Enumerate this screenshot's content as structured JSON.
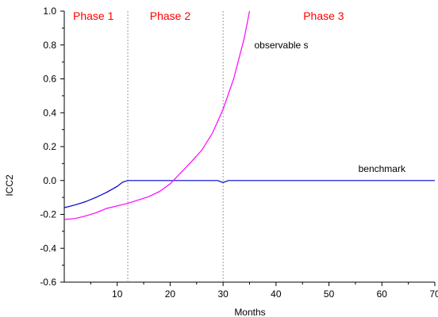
{
  "chart_data": {
    "type": "line",
    "xlabel": "Months",
    "ylabel": "ICC2",
    "xlim": [
      0,
      70
    ],
    "ylim": [
      -0.6,
      1.0
    ],
    "x_ticks": [
      10,
      20,
      30,
      40,
      50,
      60,
      70
    ],
    "y_ticks": [
      -0.6,
      -0.4,
      -0.2,
      0.0,
      0.2,
      0.4,
      0.6,
      0.8,
      1.0
    ],
    "x_tick_labels": [
      "10",
      "20",
      "30",
      "40",
      "50",
      "60",
      "70"
    ],
    "y_tick_labels": [
      "-0.6",
      "-0.4",
      "-0.2",
      "0.0",
      "0.2",
      "0.4",
      "0.6",
      "0.8",
      "1.0"
    ],
    "phases": [
      {
        "label": "Phase 1",
        "x_text": 5.5
      },
      {
        "label": "Phase 2",
        "x_text": 20
      },
      {
        "label": "Phase 3",
        "x_text": 49
      }
    ],
    "phase_boundaries": [
      12,
      30
    ],
    "series": [
      {
        "name": "benchmark",
        "color": "#0000cc",
        "label_at": [
          60,
          0.05
        ],
        "x": [
          0,
          2,
          4,
          6,
          8,
          10,
          11,
          12,
          13,
          15,
          20,
          25,
          29,
          30,
          31,
          35,
          40,
          50,
          60,
          70
        ],
        "y": [
          -0.16,
          -0.145,
          -0.125,
          -0.1,
          -0.07,
          -0.035,
          -0.01,
          0.0,
          0.0,
          0.0,
          0.0,
          0.0,
          0.0,
          -0.012,
          0.0,
          0.0,
          0.0,
          0.0,
          0.0,
          0.0
        ]
      },
      {
        "name": "observable s",
        "color": "#ff00ff",
        "label_at": [
          41,
          0.78
        ],
        "x": [
          0,
          2,
          4,
          6,
          8,
          10,
          12,
          14,
          16,
          18,
          20,
          22,
          24,
          26,
          28,
          30,
          32,
          34,
          35
        ],
        "y": [
          -0.23,
          -0.225,
          -0.21,
          -0.19,
          -0.165,
          -0.15,
          -0.135,
          -0.115,
          -0.095,
          -0.065,
          -0.02,
          0.045,
          0.11,
          0.18,
          0.28,
          0.42,
          0.6,
          0.84,
          1.0
        ]
      }
    ],
    "grid": false,
    "legend": "none"
  }
}
